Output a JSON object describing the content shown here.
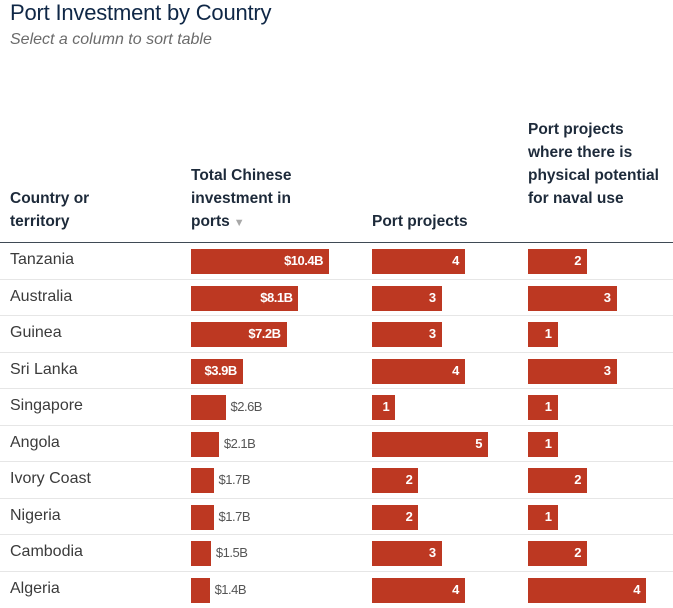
{
  "title": "Port Investment by Country",
  "subtitle": "Select a column to sort table",
  "columns": {
    "country": "Country or territory",
    "investment": "Total Chinese investment in ports",
    "projects": "Port projects",
    "naval": "Port projects where there is physical potential for naval use",
    "sort_icon": "▼"
  },
  "sort": {
    "column": "investment",
    "direction": "descending"
  },
  "colors": {
    "bar": "#bd3822",
    "title": "#0f2746"
  },
  "chart_data": {
    "type": "table",
    "title": "Port Investment by Country",
    "subtitle": "Select a column to sort table",
    "columns": [
      "Country or territory",
      "Total Chinese investment in ports",
      "Port projects",
      "Port projects where there is physical potential for naval use"
    ],
    "rows": [
      {
        "country": "Tanzania",
        "investment": 10.4,
        "investment_label": "$10.4B",
        "projects": 4,
        "naval": 2
      },
      {
        "country": "Australia",
        "investment": 8.1,
        "investment_label": "$8.1B",
        "projects": 3,
        "naval": 3
      },
      {
        "country": "Guinea",
        "investment": 7.2,
        "investment_label": "$7.2B",
        "projects": 3,
        "naval": 1
      },
      {
        "country": "Sri Lanka",
        "investment": 3.9,
        "investment_label": "$3.9B",
        "projects": 4,
        "naval": 3
      },
      {
        "country": "Singapore",
        "investment": 2.6,
        "investment_label": "$2.6B",
        "projects": 1,
        "naval": 1
      },
      {
        "country": "Angola",
        "investment": 2.1,
        "investment_label": "$2.1B",
        "projects": 5,
        "naval": 1
      },
      {
        "country": "Ivory Coast",
        "investment": 1.7,
        "investment_label": "$1.7B",
        "projects": 2,
        "naval": 2
      },
      {
        "country": "Nigeria",
        "investment": 1.7,
        "investment_label": "$1.7B",
        "projects": 2,
        "naval": 1
      },
      {
        "country": "Cambodia",
        "investment": 1.5,
        "investment_label": "$1.5B",
        "projects": 3,
        "naval": 2
      },
      {
        "country": "Algeria",
        "investment": 1.4,
        "investment_label": "$1.4B",
        "projects": 4,
        "naval": 4
      }
    ]
  }
}
